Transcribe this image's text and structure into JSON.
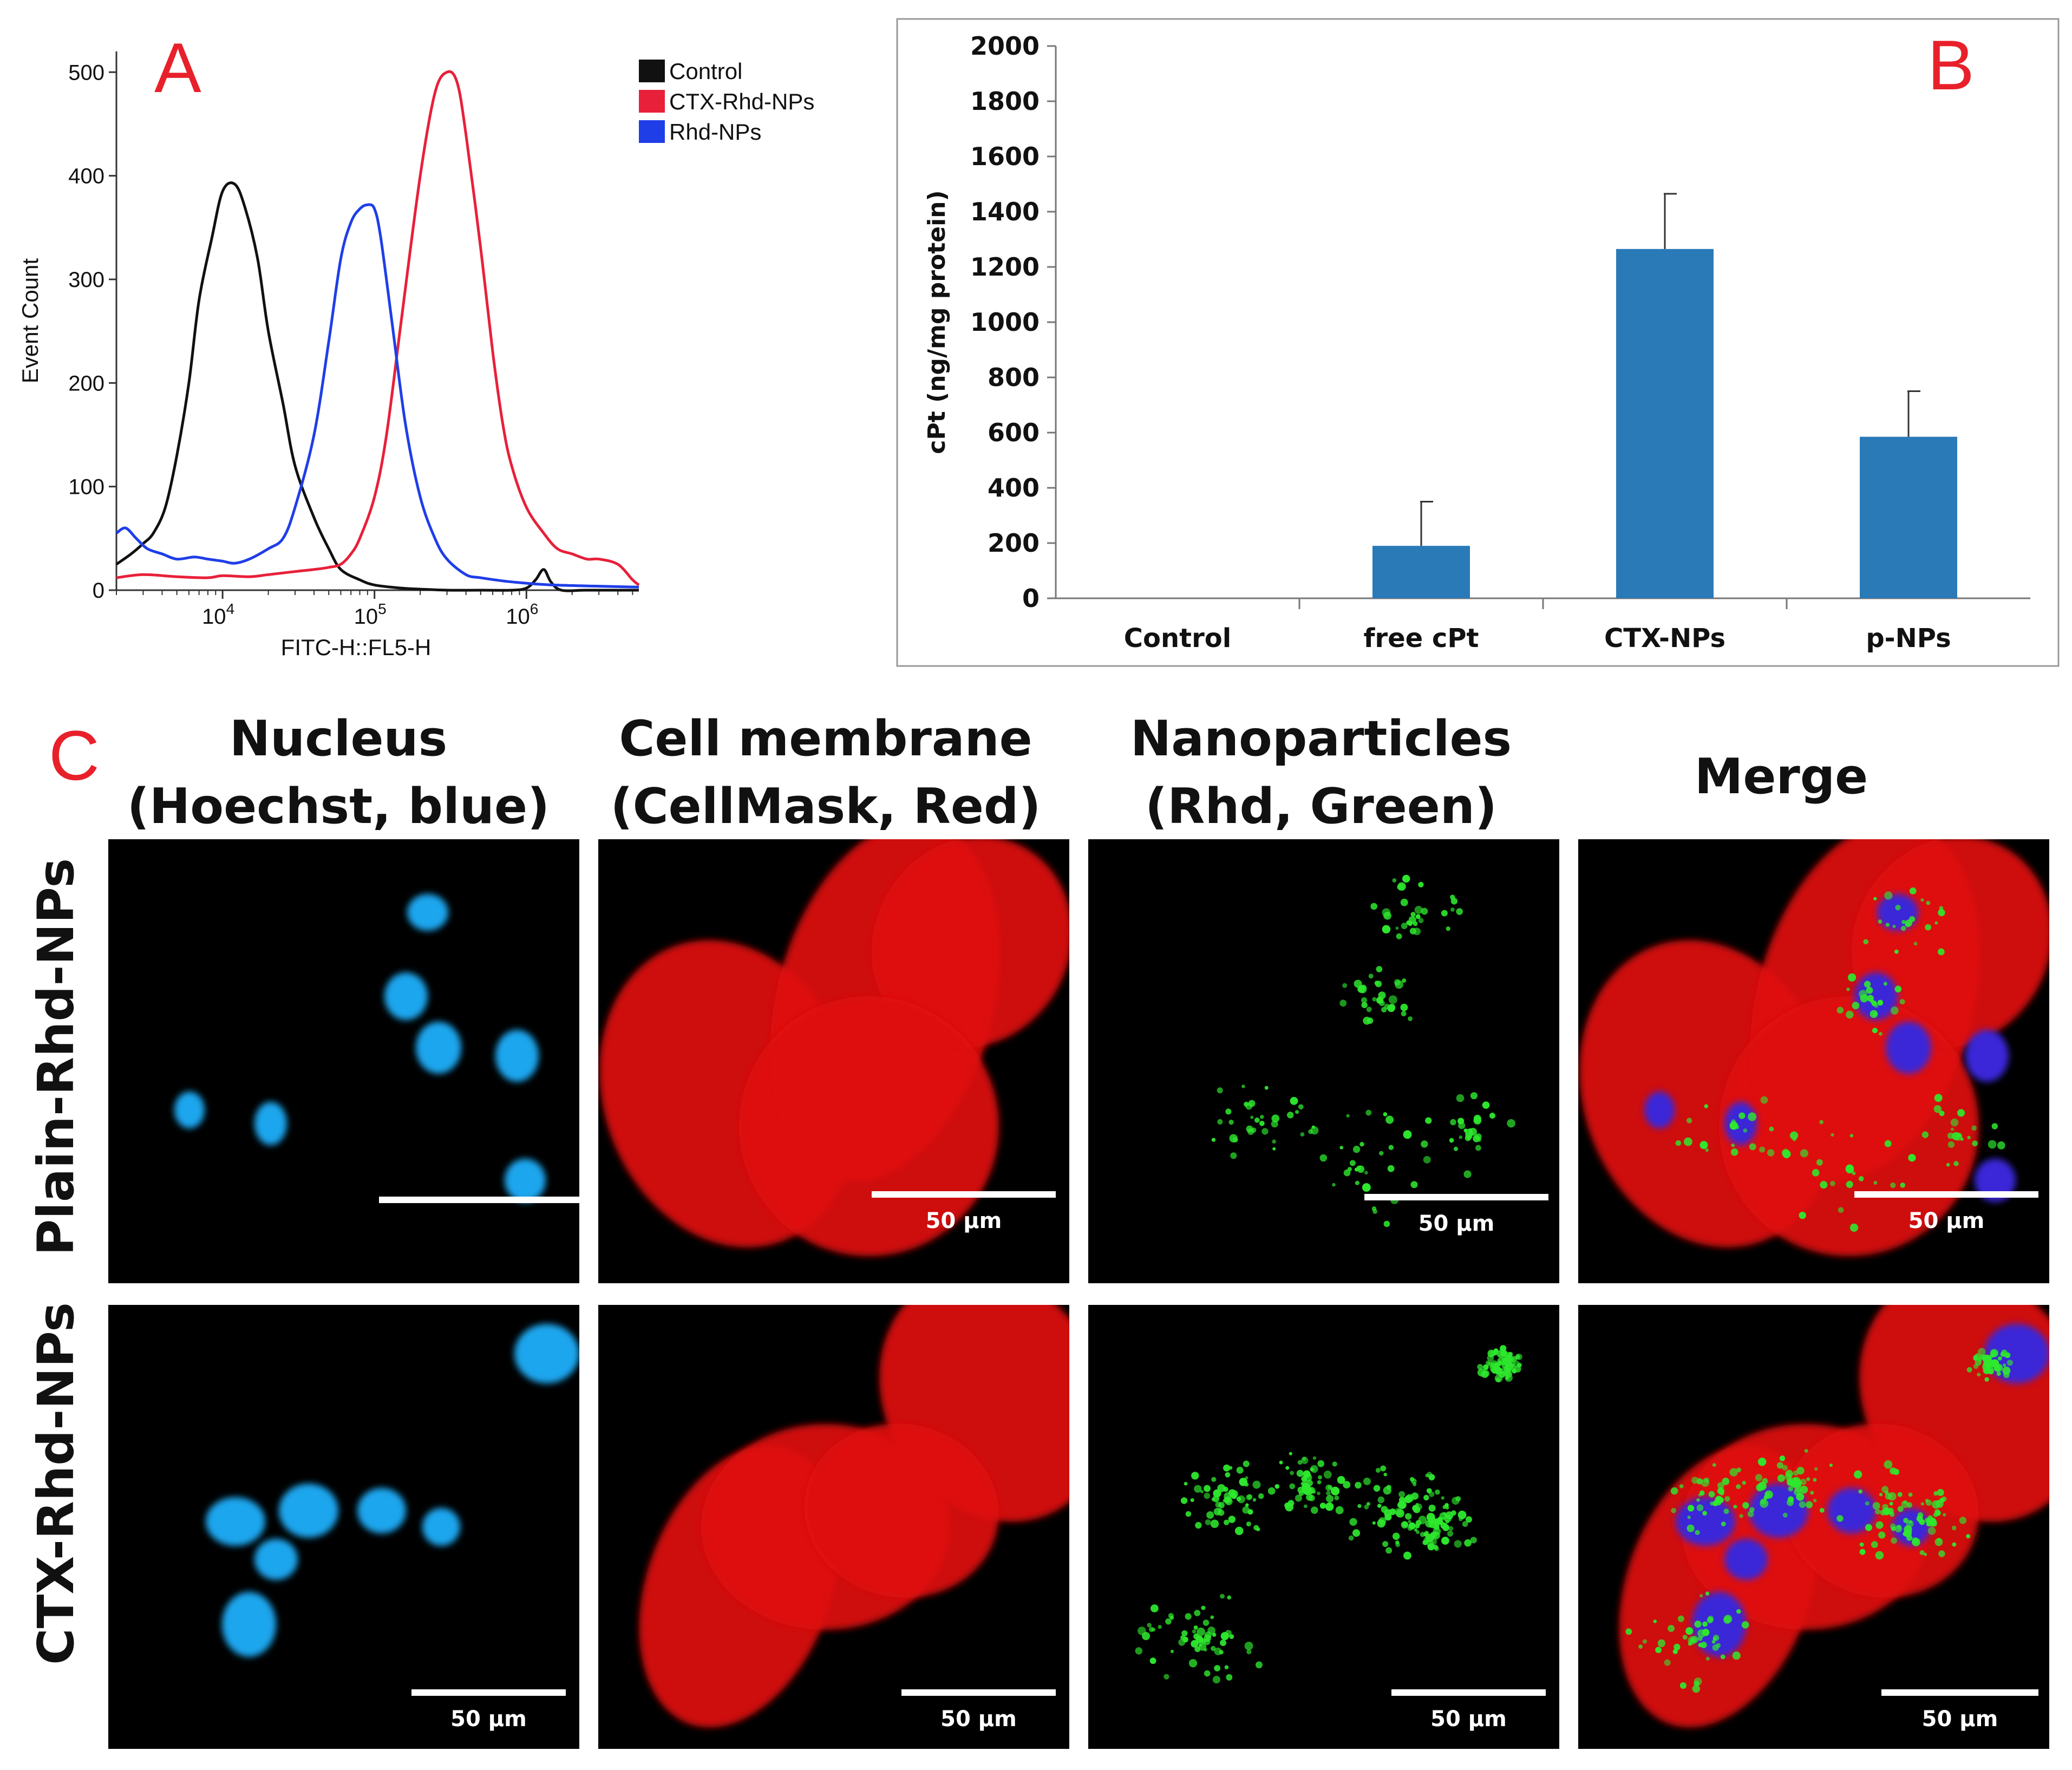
{
  "colors": {
    "control": "#111111",
    "ctx_rhd": "#e8203a",
    "rhd": "#1f3ee8",
    "bar": "#2a7ab8",
    "panel_letter": "#e8202a"
  },
  "chart_data": [
    {
      "type": "line",
      "panel": "A",
      "xlabel": "FITC-H::FL5-H",
      "ylabel": "Event Count",
      "xscale": "log",
      "xlim": [
        2000,
        5500000
      ],
      "ylim": [
        0,
        520
      ],
      "x_ticks": [
        {
          "value": 10000,
          "base": "10",
          "exp": "4"
        },
        {
          "value": 100000,
          "base": "10",
          "exp": "5"
        },
        {
          "value": 1000000,
          "base": "10",
          "exp": "6"
        }
      ],
      "y_ticks": [
        0,
        100,
        200,
        300,
        400,
        500
      ],
      "legend_position": "top-right",
      "series": [
        {
          "name": "Control",
          "color": "#111111",
          "x": [
            2000,
            2500,
            3000,
            3500,
            4200,
            5000,
            6000,
            7000,
            8500,
            10000,
            12000,
            14000,
            17000,
            20000,
            25000,
            30000,
            40000,
            50000,
            60000,
            80000,
            100000,
            150000,
            200000,
            300000,
            500000,
            800000,
            1000000,
            1150000,
            1300000,
            1450000,
            1700000,
            2500000,
            5500000
          ],
          "y": [
            25,
            35,
            45,
            55,
            80,
            130,
            200,
            280,
            340,
            385,
            392,
            370,
            320,
            250,
            180,
            120,
            70,
            40,
            20,
            10,
            5,
            2,
            1,
            0,
            0,
            0,
            2,
            10,
            20,
            8,
            0,
            0,
            0
          ]
        },
        {
          "name": "CTX-Rhd-NPs",
          "color": "#e8203a",
          "x": [
            2000,
            3000,
            5000,
            8000,
            10000,
            15000,
            20000,
            30000,
            40000,
            50000,
            60000,
            70000,
            80000,
            100000,
            120000,
            150000,
            200000,
            250000,
            300000,
            350000,
            400000,
            500000,
            600000,
            700000,
            800000,
            1000000,
            1300000,
            1600000,
            2000000,
            2500000,
            3000000,
            4000000,
            5000000,
            5500000
          ],
          "y": [
            12,
            15,
            13,
            12,
            14,
            13,
            15,
            18,
            20,
            22,
            25,
            35,
            50,
            90,
            150,
            260,
            400,
            480,
            500,
            490,
            440,
            330,
            230,
            160,
            120,
            80,
            55,
            40,
            35,
            30,
            30,
            25,
            10,
            5
          ]
        },
        {
          "name": "Rhd-NPs",
          "color": "#1f3ee8",
          "x": [
            2000,
            2300,
            2700,
            3200,
            4000,
            5000,
            6500,
            8000,
            10000,
            12000,
            15000,
            20000,
            25000,
            30000,
            40000,
            50000,
            60000,
            70000,
            80000,
            90000,
            100000,
            110000,
            130000,
            160000,
            200000,
            250000,
            300000,
            400000,
            500000,
            800000,
            1500000,
            5500000
          ],
          "y": [
            55,
            60,
            50,
            40,
            35,
            30,
            32,
            30,
            28,
            26,
            30,
            40,
            50,
            80,
            150,
            240,
            320,
            355,
            368,
            372,
            368,
            340,
            260,
            160,
            90,
            50,
            30,
            15,
            12,
            8,
            5,
            3
          ]
        }
      ]
    },
    {
      "type": "bar",
      "panel": "B",
      "xlabel": "",
      "ylabel": "cPt (ng/mg protein)",
      "ylim": [
        0,
        2000
      ],
      "y_ticks": [
        0,
        200,
        400,
        600,
        800,
        1000,
        1200,
        1400,
        1600,
        1800,
        2000
      ],
      "categories": [
        "Control",
        "free cPt",
        "CTX-NPs",
        "p-NPs"
      ],
      "values": [
        0,
        190,
        1265,
        585
      ],
      "errors": [
        0,
        160,
        200,
        165
      ],
      "grid": false
    }
  ],
  "panel_labels": {
    "a": "A",
    "b": "B",
    "c": "C"
  },
  "microscopy": {
    "columns": [
      {
        "line1": "Nucleus",
        "line2": "(Hoechst, blue)"
      },
      {
        "line1": "Cell membrane",
        "line2": "(CellMask, Red)"
      },
      {
        "line1": "Nanoparticles",
        "line2": "(Rhd, Green)"
      },
      {
        "line1": "Merge",
        "line2": ""
      }
    ],
    "rows": [
      "Plain-Rhd-NPs",
      "CTX-Rhd-NPs"
    ],
    "scale_bar": "50 µm"
  }
}
